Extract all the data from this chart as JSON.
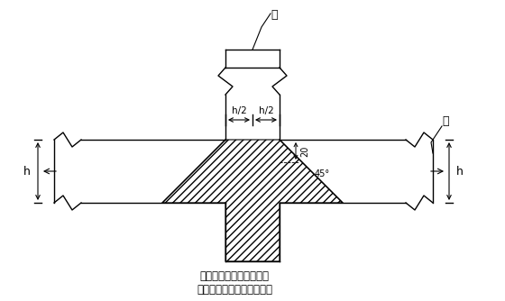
{
  "caption_line1": "梁、柱节点处不同等级混",
  "caption_line2": "凝土浇筑施工缝留置示意图",
  "label_col": "柱",
  "label_beam": "梁",
  "label_h2_left": "h/2",
  "label_h2_right": "h/2",
  "label_20": "20",
  "label_45": "45°",
  "label_h_left": "h",
  "label_h_right": "h",
  "bg_color": "#ffffff",
  "line_color": "#000000",
  "fig_width": 5.6,
  "fig_height": 3.34,
  "dpi": 100
}
